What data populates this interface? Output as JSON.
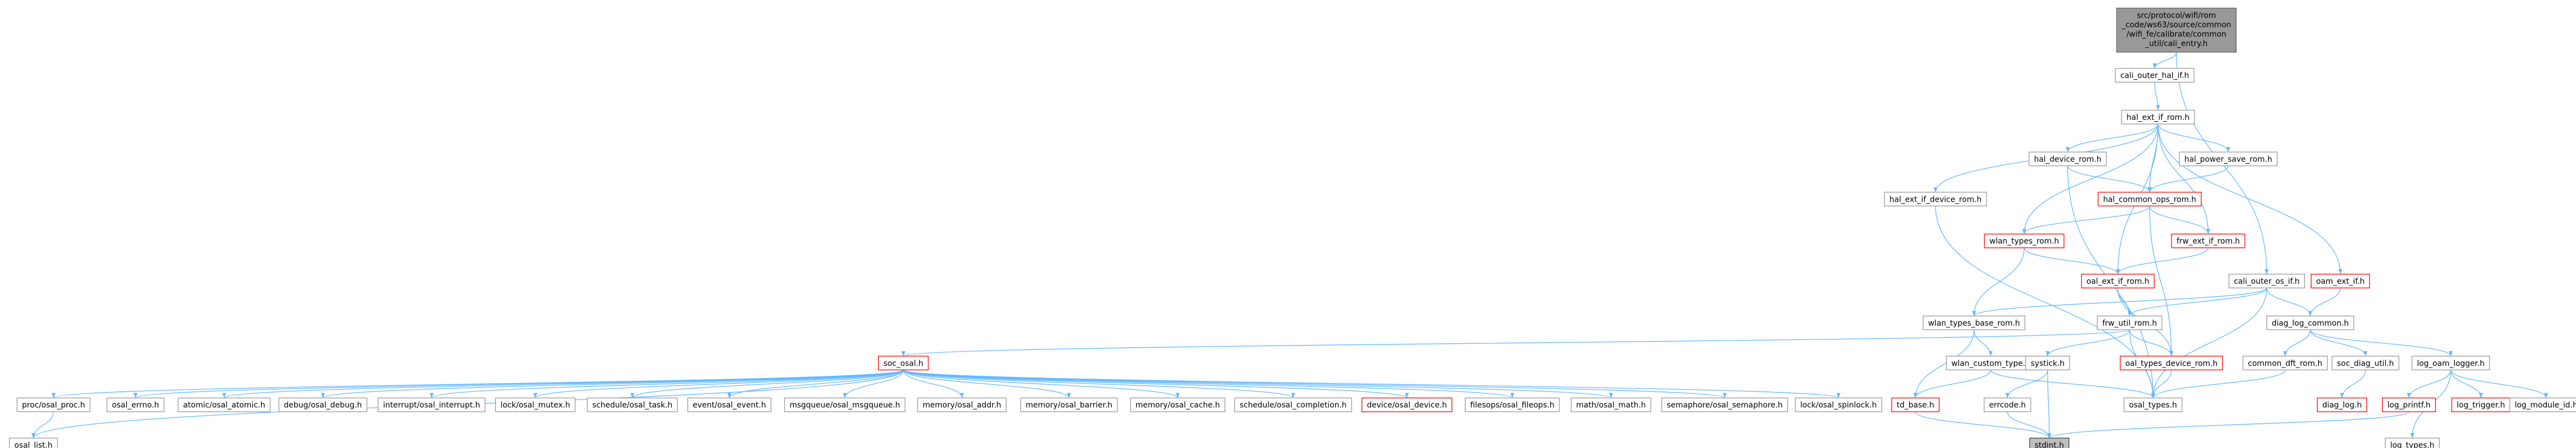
{
  "nodes": [
    {
      "lines": [
        "src/protocol/wifi/rom",
        "_code/ws63/source/common",
        "/wifi_fe/calibrate/common",
        "_util/cali_entry.h"
      ]
    },
    {
      "label": "cali_outer_hal_if.h"
    },
    {
      "label": "hal_ext_if_rom.h"
    },
    {
      "label": "hal_device_rom.h"
    },
    {
      "label": "hal_power_save_rom.h"
    },
    {
      "label": "hal_ext_if_device_rom.h"
    },
    {
      "label": "hal_common_ops_rom.h"
    },
    {
      "label": "wlan_types_rom.h"
    },
    {
      "label": "frw_ext_if_rom.h"
    },
    {
      "label": "oal_ext_if_rom.h"
    },
    {
      "label": "cali_outer_os_if.h"
    },
    {
      "label": "oam_ext_if.h"
    },
    {
      "label": "wlan_types_base_rom.h"
    },
    {
      "label": "frw_util_rom.h"
    },
    {
      "label": "diag_log_common.h"
    },
    {
      "label": "soc_osal.h"
    },
    {
      "label": "wlan_custom_type.h"
    },
    {
      "label": "systick.h"
    },
    {
      "label": "oal_types_device_rom.h"
    },
    {
      "label": "common_dft_rom.h"
    },
    {
      "label": "soc_diag_util.h"
    },
    {
      "label": "log_oam_logger.h"
    },
    {
      "label": "proc/osal_proc.h"
    },
    {
      "label": "osal_errno.h"
    },
    {
      "label": "atomic/osal_atomic.h"
    },
    {
      "label": "debug/osal_debug.h"
    },
    {
      "label": "interrupt/osal_interrupt.h"
    },
    {
      "label": "lock/osal_mutex.h"
    },
    {
      "label": "schedule/osal_task.h"
    },
    {
      "label": "event/osal_event.h"
    },
    {
      "label": "msgqueue/osal_msgqueue.h"
    },
    {
      "label": "memory/osal_addr.h"
    },
    {
      "label": "memory/osal_barrier.h"
    },
    {
      "label": "memory/osal_cache.h"
    },
    {
      "label": "schedule/osal_completion.h"
    },
    {
      "label": "device/osal_device.h"
    },
    {
      "label": "filesops/osal_fileops.h"
    },
    {
      "label": "math/osal_math.h"
    },
    {
      "label": "semaphore/osal_semaphore.h"
    },
    {
      "label": "lock/osal_spinlock.h"
    },
    {
      "label": "td_base.h"
    },
    {
      "label": "errcode.h"
    },
    {
      "label": "osal_types.h"
    },
    {
      "label": "diag_log.h"
    },
    {
      "label": "log_printf.h"
    },
    {
      "label": "log_trigger.h"
    },
    {
      "label": "log_module_id.h"
    },
    {
      "label": "osal_list.h"
    },
    {
      "label": "stdint.h"
    },
    {
      "label": "log_types.h"
    }
  ]
}
